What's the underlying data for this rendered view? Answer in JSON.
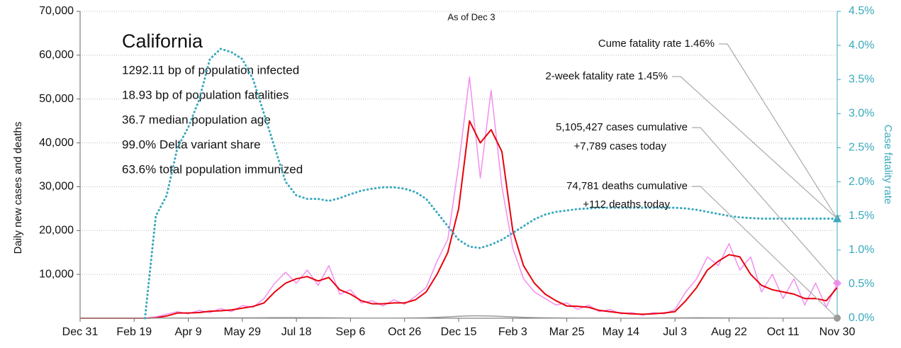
{
  "chart_data": {
    "type": "line",
    "subtitle": "As of Dec 3",
    "ylabel": "Daily new cases and deaths",
    "y2label": "Case fatality rate",
    "inset": {
      "title": "California",
      "lines": [
        "1292.11 bp of population infected",
        "18.93 bp of population fatalities",
        "36.7 median population age",
        "99.0% Delta variant share",
        "63.6% total population immunized"
      ]
    },
    "annotations": [
      "Cume fatality rate 1.46%",
      "2-week fatality rate 1.45%",
      "5,105,427 cases cumulative",
      "+7,789 cases today",
      "74,781 deaths cumulative",
      "+112 deaths today"
    ],
    "xlim": [
      0,
      700
    ],
    "xticks": [
      {
        "value": 0,
        "label": "Dec 31"
      },
      {
        "value": 50,
        "label": "Feb 19"
      },
      {
        "value": 100,
        "label": "Apr 9"
      },
      {
        "value": 150,
        "label": "May 29"
      },
      {
        "value": 200,
        "label": "Jul 18"
      },
      {
        "value": 250,
        "label": "Sep 6"
      },
      {
        "value": 300,
        "label": "Oct 26"
      },
      {
        "value": 350,
        "label": "Dec 15"
      },
      {
        "value": 400,
        "label": "Feb 3"
      },
      {
        "value": 450,
        "label": "Mar 25"
      },
      {
        "value": 500,
        "label": "May 14"
      },
      {
        "value": 550,
        "label": "Jul 3"
      },
      {
        "value": 600,
        "label": "Aug 22"
      },
      {
        "value": 650,
        "label": "Oct 11"
      },
      {
        "value": 700,
        "label": "Nov 30"
      }
    ],
    "ylim": [
      0,
      70000
    ],
    "yticks": [
      {
        "value": 10000,
        "label": "10,000"
      },
      {
        "value": 20000,
        "label": "20,000"
      },
      {
        "value": 30000,
        "label": "30,000"
      },
      {
        "value": 40000,
        "label": "40,000"
      },
      {
        "value": 50000,
        "label": "50,000"
      },
      {
        "value": 60000,
        "label": "60,000"
      },
      {
        "value": 70000,
        "label": "70,000"
      }
    ],
    "y2lim": [
      0,
      4.5
    ],
    "y2ticks": [
      {
        "value": 0,
        "label": "0.0%"
      },
      {
        "value": 0.5,
        "label": "0.5%"
      },
      {
        "value": 1,
        "label": "1.0%"
      },
      {
        "value": 1.5,
        "label": "1.5%"
      },
      {
        "value": 2,
        "label": "2.0%"
      },
      {
        "value": 2.5,
        "label": "2.5%"
      },
      {
        "value": 3,
        "label": "3.0%"
      },
      {
        "value": 3.5,
        "label": "3.5%"
      },
      {
        "value": 4,
        "label": "4.0%"
      },
      {
        "value": 4.5,
        "label": "4.5%"
      }
    ],
    "grid": true,
    "x": [
      0,
      10,
      20,
      30,
      40,
      50,
      60,
      70,
      80,
      90,
      100,
      110,
      120,
      130,
      140,
      150,
      160,
      170,
      180,
      190,
      200,
      210,
      220,
      230,
      240,
      250,
      260,
      270,
      280,
      290,
      300,
      310,
      320,
      330,
      340,
      350,
      360,
      370,
      380,
      390,
      400,
      410,
      420,
      430,
      440,
      450,
      460,
      470,
      480,
      490,
      500,
      510,
      520,
      530,
      540,
      550,
      560,
      570,
      580,
      590,
      600,
      610,
      620,
      630,
      640,
      650,
      660,
      670,
      680,
      690,
      700
    ],
    "series": [
      {
        "color": "#f28ef0",
        "width": 1.5,
        "style": "solid",
        "end_marker": "diamond",
        "values": [
          0,
          0,
          0,
          0,
          0,
          0,
          0,
          300,
          900,
          1500,
          1000,
          1800,
          1300,
          2200,
          1500,
          2900,
          2500,
          4500,
          8000,
          10500,
          8000,
          11000,
          7500,
          12000,
          5500,
          6500,
          3500,
          4000,
          2800,
          4200,
          3200,
          5000,
          7000,
          13000,
          18000,
          35000,
          55000,
          32000,
          52000,
          30000,
          16000,
          9000,
          6000,
          4500,
          3000,
          3500,
          2000,
          3000,
          1500,
          2000,
          1000,
          1300,
          700,
          1300,
          1000,
          2000,
          6000,
          9000,
          14000,
          12000,
          17000,
          11000,
          14000,
          6000,
          10000,
          4500,
          9000,
          3000,
          8000,
          2500,
          8000
        ]
      },
      {
        "color": "#e8000b",
        "width": 2,
        "style": "solid",
        "values": [
          0,
          0,
          0,
          0,
          0,
          0,
          0,
          100,
          500,
          1200,
          1200,
          1300,
          1600,
          1700,
          1900,
          2300,
          2700,
          3500,
          6000,
          8000,
          9000,
          9500,
          8500,
          9300,
          6500,
          5500,
          4000,
          3300,
          3300,
          3500,
          3500,
          4200,
          6000,
          10000,
          15000,
          25000,
          45000,
          40000,
          43000,
          38000,
          20000,
          12000,
          8000,
          5500,
          4000,
          2800,
          2700,
          2500,
          1800,
          1500,
          1200,
          1000,
          900,
          1000,
          1200,
          1500,
          4000,
          7000,
          11000,
          13000,
          14500,
          14000,
          10000,
          7500,
          6500,
          6000,
          5500,
          4500,
          4500,
          4000,
          7000
        ]
      },
      {
        "color": "#9a9a9a",
        "width": 1.5,
        "style": "solid",
        "end_marker": "circle",
        "values": [
          0,
          0,
          0,
          0,
          0,
          0,
          0,
          10,
          30,
          60,
          70,
          80,
          80,
          80,
          90,
          90,
          100,
          120,
          140,
          140,
          140,
          130,
          120,
          100,
          80,
          60,
          50,
          50,
          50,
          50,
          60,
          80,
          120,
          200,
          300,
          450,
          550,
          550,
          500,
          400,
          300,
          200,
          150,
          100,
          80,
          60,
          50,
          40,
          30,
          30,
          20,
          20,
          20,
          30,
          60,
          90,
          100,
          110,
          100,
          90,
          80,
          70,
          60,
          60,
          50,
          50,
          50,
          40,
          40,
          50,
          40
        ]
      },
      {
        "color": "#3aa9bd",
        "width": 3,
        "style": "dotted",
        "axis": "y2",
        "end_marker": "triangle",
        "values": [
          null,
          null,
          null,
          null,
          null,
          null,
          0,
          1.5,
          1.8,
          2.5,
          2.8,
          3.2,
          3.8,
          3.95,
          3.9,
          3.8,
          3.5,
          3.0,
          2.5,
          2.0,
          1.8,
          1.75,
          1.75,
          1.72,
          1.76,
          1.82,
          1.87,
          1.9,
          1.92,
          1.92,
          1.9,
          1.85,
          1.75,
          1.55,
          1.35,
          1.15,
          1.05,
          1.03,
          1.08,
          1.15,
          1.25,
          1.35,
          1.45,
          1.52,
          1.56,
          1.58,
          1.6,
          1.61,
          1.62,
          1.62,
          1.62,
          1.62,
          1.62,
          1.62,
          1.62,
          1.62,
          1.61,
          1.59,
          1.56,
          1.53,
          1.5,
          1.48,
          1.47,
          1.46,
          1.46,
          1.46,
          1.46,
          1.46,
          1.46,
          1.46,
          1.46
        ]
      }
    ]
  }
}
